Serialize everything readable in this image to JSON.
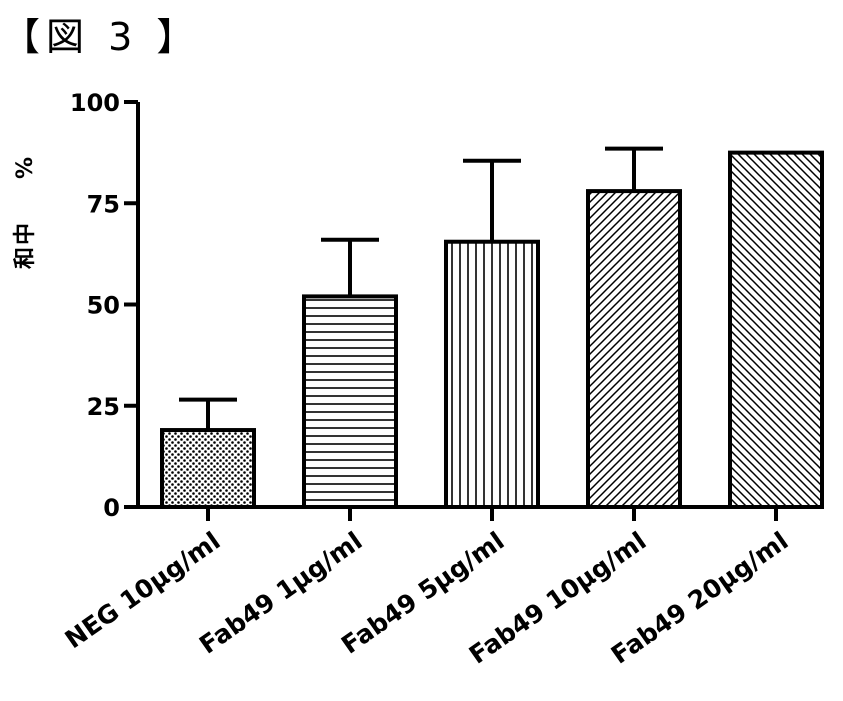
{
  "figure": {
    "title": "【図 3 】"
  },
  "chart_data": {
    "type": "bar",
    "title": "",
    "xlabel": "",
    "ylabel": "中和 %",
    "ylim": [
      0,
      100
    ],
    "yticks": [
      0,
      25,
      50,
      75,
      100
    ],
    "categories": [
      "NEG 10μg/ml",
      "Fab49 1μg/ml",
      "Fab49 5μg/ml",
      "Fab49 10μg/ml",
      "Fab49 20μg/ml"
    ],
    "values": [
      19,
      52,
      65.5,
      78,
      87.5
    ],
    "error_upper": [
      26.5,
      66,
      85.5,
      88.5,
      null
    ],
    "patterns": [
      "dots",
      "horizontal-lines",
      "vertical-lines",
      "diagonal-up",
      "diagonal-down"
    ],
    "grid": false,
    "bar_color": "#ffffff",
    "line_color": "#000000"
  }
}
